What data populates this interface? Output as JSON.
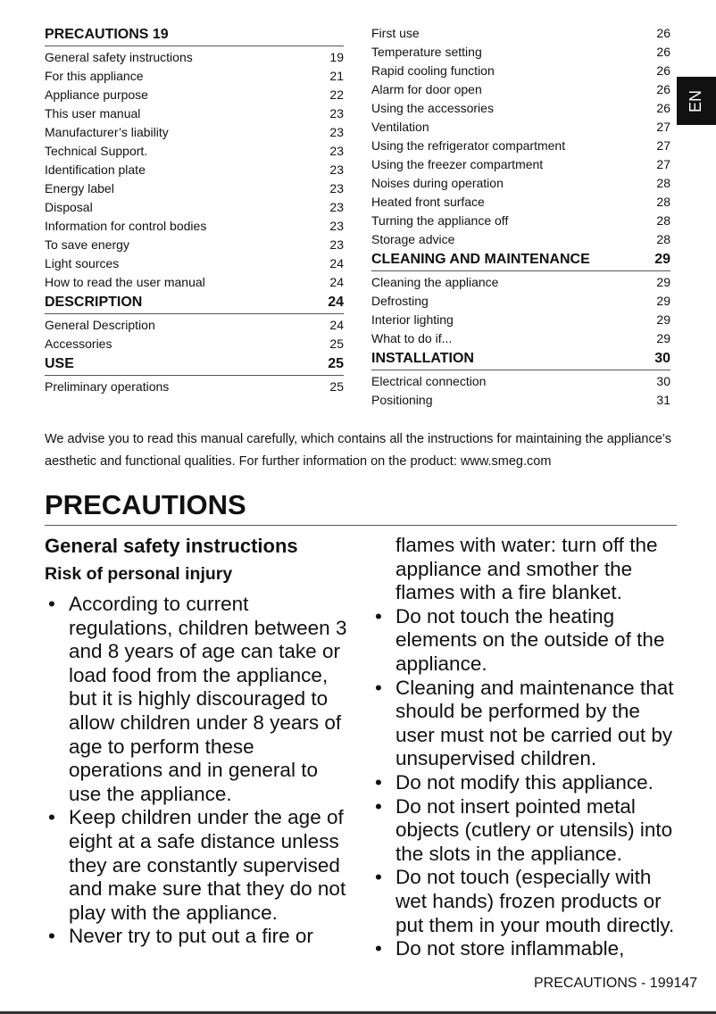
{
  "toc_left": [
    {
      "type": "section",
      "label": "PRECAUTIONS 19",
      "page": ""
    },
    {
      "label": "General safety instructions",
      "page": "19"
    },
    {
      "label": "For this appliance",
      "page": "21"
    },
    {
      "label": "Appliance purpose",
      "page": "22"
    },
    {
      "label": "This user manual",
      "page": "23"
    },
    {
      "label": "Manufacturer’s liability",
      "page": "23"
    },
    {
      "label": "Technical Support.",
      "page": "23"
    },
    {
      "label": "Identification plate",
      "page": "23"
    },
    {
      "label": "Energy label",
      "page": "23"
    },
    {
      "label": "Disposal",
      "page": "23"
    },
    {
      "label": "Information for control bodies",
      "page": "23"
    },
    {
      "label": "To save energy",
      "page": "23"
    },
    {
      "label": "Light sources",
      "page": "24"
    },
    {
      "label": "How to read the user manual",
      "page": "24"
    },
    {
      "type": "section",
      "label": "DESCRIPTION",
      "page": "24"
    },
    {
      "label": "General Description",
      "page": "24"
    },
    {
      "label": "Accessories",
      "page": "25"
    },
    {
      "type": "section",
      "label": "USE",
      "page": "25"
    },
    {
      "label": "Preliminary operations",
      "page": "25"
    }
  ],
  "toc_right": [
    {
      "label": "First use",
      "page": "26"
    },
    {
      "label": "Temperature setting",
      "page": "26"
    },
    {
      "label": "Rapid cooling function",
      "page": "26"
    },
    {
      "label": "Alarm for door open",
      "page": "26"
    },
    {
      "label": "Using the accessories",
      "page": "26"
    },
    {
      "label": "Ventilation",
      "page": "27"
    },
    {
      "label": "Using the refrigerator compartment",
      "page": "27"
    },
    {
      "label": "Using the freezer compartment",
      "page": "27"
    },
    {
      "label": "Noises during operation",
      "page": "28"
    },
    {
      "label": "Heated front surface",
      "page": "28"
    },
    {
      "label": "Turning the appliance off",
      "page": "28"
    },
    {
      "label": "Storage advice",
      "page": "28"
    },
    {
      "type": "section",
      "label": "CLEANING AND MAINTENANCE",
      "page": "29"
    },
    {
      "label": "Cleaning the appliance",
      "page": "29"
    },
    {
      "label": "Defrosting",
      "page": "29"
    },
    {
      "label": "Interior lighting",
      "page": "29"
    },
    {
      "label": "What to do if...",
      "page": "29"
    },
    {
      "type": "section",
      "label": "INSTALLATION",
      "page": "30"
    },
    {
      "label": "Electrical connection",
      "page": "30"
    },
    {
      "label": "Positioning",
      "page": "31"
    }
  ],
  "lang_tab": "EN",
  "intro": "We advise you to read this manual carefully, which contains all the instructions for maintaining the appliance’s aesthetic and functional qualities. For further information on the product: www.smeg.com",
  "title": "PRECAUTIONS",
  "subtitle": "General safety instructions",
  "subheading": "Risk of personal injury",
  "bullets_left": [
    "According to current regulations, children between 3 and 8 years of age can take or load food from the appliance, but it is highly discouraged to allow children under 8 years of age to perform these operations and in general to use the appliance.",
    "Keep children under the age of eight at a safe distance unless they are constantly supervised and make sure that they do not play with the appliance.",
    "Never try to put out a fire or"
  ],
  "continuation_right": "flames with water: turn off the appliance and smother the flames with a fire blanket.",
  "bullets_right": [
    "Do not touch the heating elements on the outside of the appliance.",
    "Cleaning and maintenance that should be performed by the user must not be carried out by unsupervised children.",
    "Do not modify this appliance.",
    "Do not insert pointed metal objects (cutlery or utensils) into the slots in the appliance.",
    "Do not touch (especially with wet hands) frozen products or put them in your mouth directly.",
    "Do not store inflammable,"
  ],
  "footer": "PRECAUTIONS  -  199147"
}
